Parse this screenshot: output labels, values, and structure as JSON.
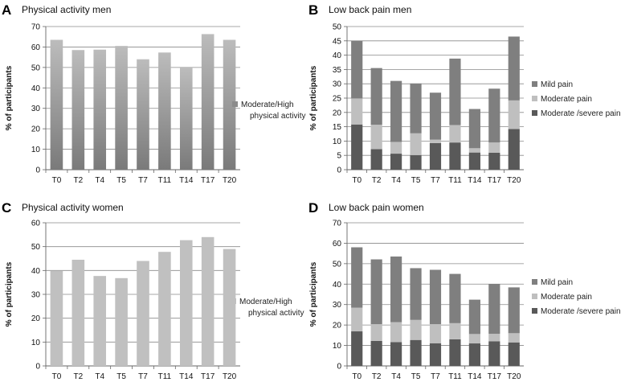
{
  "chart_data": [
    {
      "id": "A",
      "letter": "A",
      "type": "bar",
      "title": "Physical activity men",
      "ylabel": "% of participants",
      "ylim": [
        0,
        70
      ],
      "ystep": 10,
      "grid": true,
      "gradient": true,
      "categories": [
        "T0",
        "T2",
        "T4",
        "T5",
        "T7",
        "T11",
        "T14",
        "T17",
        "T20"
      ],
      "series": [
        {
          "name": "Moderate/High physical activity",
          "legend_lines": [
            "Moderate/High",
            "physical activity"
          ],
          "color": "#8c8c8c",
          "values": [
            63.5,
            58.5,
            58.7,
            60.5,
            54,
            57.3,
            49.8,
            66.3,
            63.5
          ]
        }
      ],
      "legend": "right"
    },
    {
      "id": "B",
      "letter": "B",
      "type": "bar",
      "stacked": true,
      "title": "Low back pain men",
      "ylabel": "% of participants",
      "ylim": [
        0,
        50
      ],
      "ystep": 5,
      "grid": true,
      "categories": [
        "T0",
        "T2",
        "T4",
        "T5",
        "T7",
        "T11",
        "T14",
        "T17",
        "T20"
      ],
      "series": [
        {
          "name": "Moderate /severe pain",
          "color": "#595959",
          "values": [
            15.8,
            7.2,
            5.6,
            5.1,
            9.3,
            9.5,
            6,
            5.9,
            14.2
          ]
        },
        {
          "name": "Moderate pain",
          "color": "#bfbfbf",
          "values": [
            9.1,
            8.5,
            4.1,
            7.6,
            1.2,
            6.1,
            1.5,
            3.6,
            10
          ]
        },
        {
          "name": "Mild pain",
          "color": "#7f7f7f",
          "values": [
            20.1,
            19.8,
            21.3,
            17.4,
            16.4,
            23.2,
            13.7,
            18.8,
            22.3
          ]
        }
      ],
      "legend_order": [
        "Mild pain",
        "Moderate pain",
        "Moderate /severe pain"
      ],
      "legend": "right"
    },
    {
      "id": "C",
      "letter": "C",
      "type": "bar",
      "title": "Physical activity women",
      "ylabel": "% of participants",
      "ylim": [
        0,
        60
      ],
      "ystep": 10,
      "grid": true,
      "categories": [
        "T0",
        "T2",
        "T4",
        "T5",
        "T7",
        "T11",
        "T14",
        "T17",
        "T20"
      ],
      "series": [
        {
          "name": "Moderate/High physical activity",
          "legend_lines": [
            "Moderate/High",
            "physical activity"
          ],
          "color": "#c0c0c0",
          "values": [
            39.8,
            44.5,
            37.7,
            36.8,
            44,
            47.8,
            52.7,
            54,
            49
          ]
        }
      ],
      "legend": "right"
    },
    {
      "id": "D",
      "letter": "D",
      "type": "bar",
      "stacked": true,
      "title": "Low back pain women",
      "ylabel": "% of participants",
      "ylim": [
        0,
        70
      ],
      "ystep": 10,
      "grid": true,
      "categories": [
        "T0",
        "T2",
        "T4",
        "T5",
        "T7",
        "T11",
        "T14",
        "T17",
        "T20"
      ],
      "series": [
        {
          "name": "Moderate /severe pain",
          "color": "#595959",
          "values": [
            16.9,
            12.2,
            11.6,
            12.7,
            11.1,
            13,
            11,
            12,
            11.5
          ]
        },
        {
          "name": "Moderate pain",
          "color": "#bfbfbf",
          "values": [
            11.6,
            8.2,
            9.8,
            9.8,
            9.3,
            7.9,
            4.6,
            3.7,
            4.5
          ]
        },
        {
          "name": "Mild pain",
          "color": "#7f7f7f",
          "values": [
            29.5,
            31.7,
            32.1,
            25.3,
            26.6,
            24.1,
            16.8,
            24.4,
            22.4
          ]
        }
      ],
      "legend_order": [
        "Mild pain",
        "Moderate pain",
        "Moderate /severe pain"
      ],
      "legend": "right"
    }
  ]
}
